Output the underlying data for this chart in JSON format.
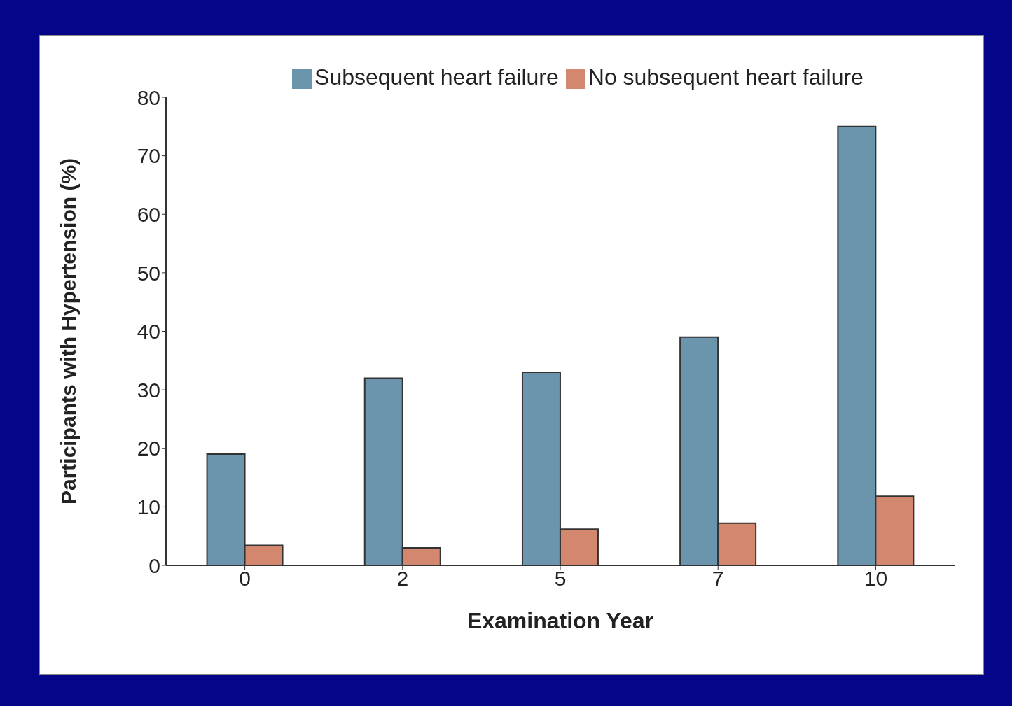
{
  "chart_data": {
    "type": "bar",
    "xlabel": "Examination Year",
    "ylabel": "Participants with Hypertension (%)",
    "categories": [
      "0",
      "2",
      "5",
      "7",
      "10"
    ],
    "series": [
      {
        "name": "Subsequent heart failure",
        "color": "#6b95ad",
        "values": [
          19,
          32,
          33,
          39,
          75
        ]
      },
      {
        "name": "No subsequent heart failure",
        "color": "#d4876f",
        "values": [
          3.4,
          3.0,
          6.2,
          7.2,
          11.8
        ]
      }
    ],
    "ylim": [
      0,
      80
    ],
    "yticks": [
      0,
      10,
      20,
      30,
      40,
      50,
      60,
      70,
      80
    ],
    "grid": false,
    "legend": "top"
  }
}
